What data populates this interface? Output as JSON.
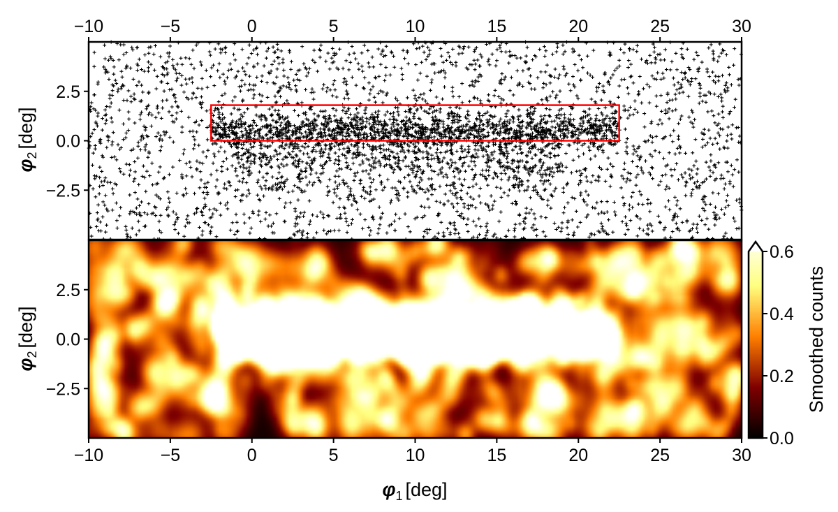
{
  "chart_data": [
    {
      "type": "scatter",
      "panel": "top",
      "description_values": {
        "stream_phi2_center": 0.5,
        "stream_phi1_range": [
          -2.5,
          22.5
        ]
      },
      "xlim": [
        -10,
        30
      ],
      "ylim": [
        -5,
        5
      ],
      "xticks": [
        "−10",
        "−5",
        "0",
        "5",
        "10",
        "15",
        "20",
        "25",
        "30"
      ],
      "xtick_values": [
        -10,
        -5,
        0,
        5,
        10,
        15,
        20,
        25,
        30
      ],
      "yticks": [
        "2.5",
        "0.0",
        "−2.5"
      ],
      "ytick_values": [
        2.5,
        0.0,
        -2.5
      ],
      "ylabel_symbol": "φ",
      "ylabel_sub": "2",
      "ylabel_unit": "[deg]",
      "xaxis_position": "top",
      "highlight_box": {
        "phi1": [
          -2.5,
          22.5
        ],
        "phi2": [
          0.0,
          1.8
        ],
        "color": "#ff0000"
      },
      "marker": "+",
      "marker_color": "#000000"
    },
    {
      "type": "heatmap",
      "panel": "bottom",
      "xlim": [
        -10,
        30
      ],
      "ylim": [
        -5,
        5
      ],
      "xticks": [
        "−10",
        "−5",
        "0",
        "5",
        "10",
        "15",
        "20",
        "25",
        "30"
      ],
      "xtick_values": [
        -10,
        -5,
        0,
        5,
        10,
        15,
        20,
        25,
        30
      ],
      "yticks": [
        "2.5",
        "0.0",
        "−2.5"
      ],
      "ytick_values": [
        2.5,
        0.0,
        -2.5
      ],
      "xlabel_symbol": "φ",
      "xlabel_sub": "1",
      "xlabel_unit": "[deg]",
      "ylabel_symbol": "φ",
      "ylabel_sub": "2",
      "ylabel_unit": "[deg]",
      "colormap": "afmhot",
      "bright_regions_phi1": [
        -1,
        5,
        8,
        11,
        15,
        20
      ],
      "colorbar": {
        "label": "Smoothed counts",
        "range": [
          0.0,
          0.6
        ],
        "ticks": [
          "0.0",
          "0.2",
          "0.4",
          "0.6"
        ],
        "tick_values": [
          0.0,
          0.2,
          0.4,
          0.6
        ],
        "extend": "max"
      }
    }
  ]
}
